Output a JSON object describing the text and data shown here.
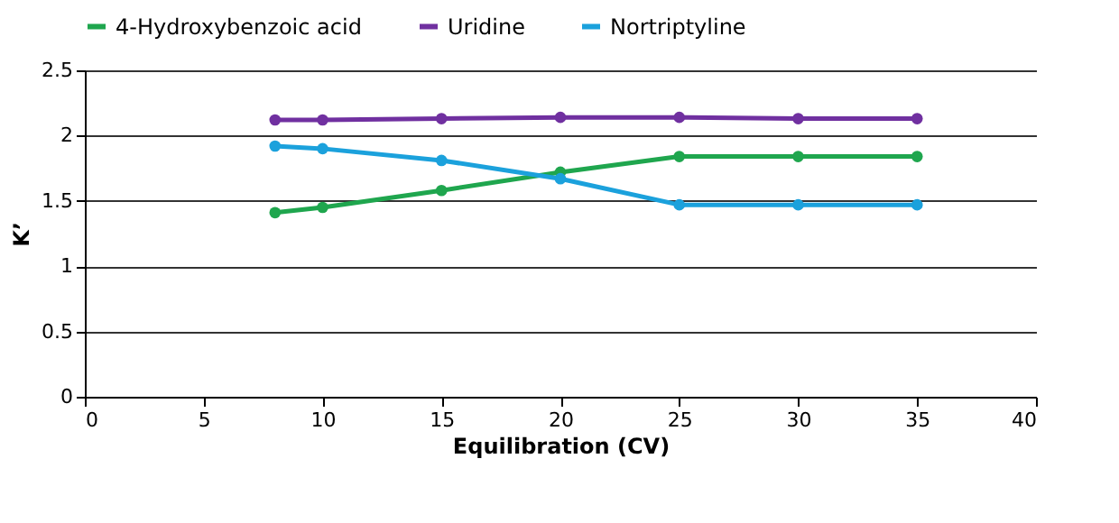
{
  "chart_data": {
    "type": "line",
    "xlabel": "Equilibration (CV)",
    "ylabel": "K’",
    "x": [
      8,
      10,
      15,
      20,
      25,
      30,
      35
    ],
    "series": [
      {
        "name": "4-Hydroxybenzoic acid",
        "color": "#1fa64e",
        "values": [
          1.41,
          1.45,
          1.58,
          1.72,
          1.84,
          1.84,
          1.84
        ]
      },
      {
        "name": "Uridine",
        "color": "#7030a0",
        "values": [
          2.12,
          2.12,
          2.13,
          2.14,
          2.14,
          2.13,
          2.13
        ]
      },
      {
        "name": "Nortriptyline",
        "color": "#1ba1dc",
        "values": [
          1.92,
          1.9,
          1.81,
          1.67,
          1.47,
          1.47,
          1.47
        ]
      }
    ],
    "xlim": [
      0,
      40
    ],
    "xticks": [
      0,
      5,
      10,
      15,
      20,
      25,
      30,
      35,
      40
    ],
    "ylim": [
      0,
      2.5
    ],
    "yticks": [
      0,
      0.5,
      1,
      1.5,
      2,
      2.5
    ],
    "grid": "y",
    "legend": "top",
    "marker": "circle",
    "line_style": "solid"
  }
}
